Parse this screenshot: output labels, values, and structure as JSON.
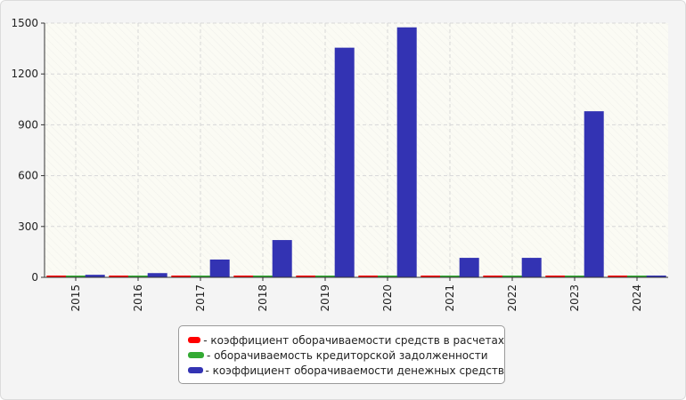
{
  "chart_data": {
    "type": "bar",
    "categories": [
      "2015",
      "2016",
      "2017",
      "2018",
      "2019",
      "2020",
      "2021",
      "2022",
      "2023",
      "2024"
    ],
    "series": [
      {
        "name": "коэффициент оборачиваемости средств в расчетах",
        "color": "#ff0000",
        "values": [
          5,
          8,
          8,
          10,
          10,
          5,
          5,
          5,
          5,
          5
        ]
      },
      {
        "name": "оборачиваемость кредиторской задолженности",
        "color": "#33aa33",
        "values": [
          3,
          3,
          3,
          3,
          3,
          3,
          3,
          3,
          3,
          3
        ]
      },
      {
        "name": "коэффициент оборачиваемости денежных средств",
        "color": "#3333b3",
        "values": [
          15,
          25,
          105,
          220,
          1355,
          1475,
          115,
          115,
          980,
          0
        ]
      }
    ],
    "y_ticks": [
      0,
      300,
      600,
      900,
      1200,
      1500
    ],
    "ylim": [
      0,
      1500
    ],
    "grid": true,
    "legend_position": "bottom"
  }
}
